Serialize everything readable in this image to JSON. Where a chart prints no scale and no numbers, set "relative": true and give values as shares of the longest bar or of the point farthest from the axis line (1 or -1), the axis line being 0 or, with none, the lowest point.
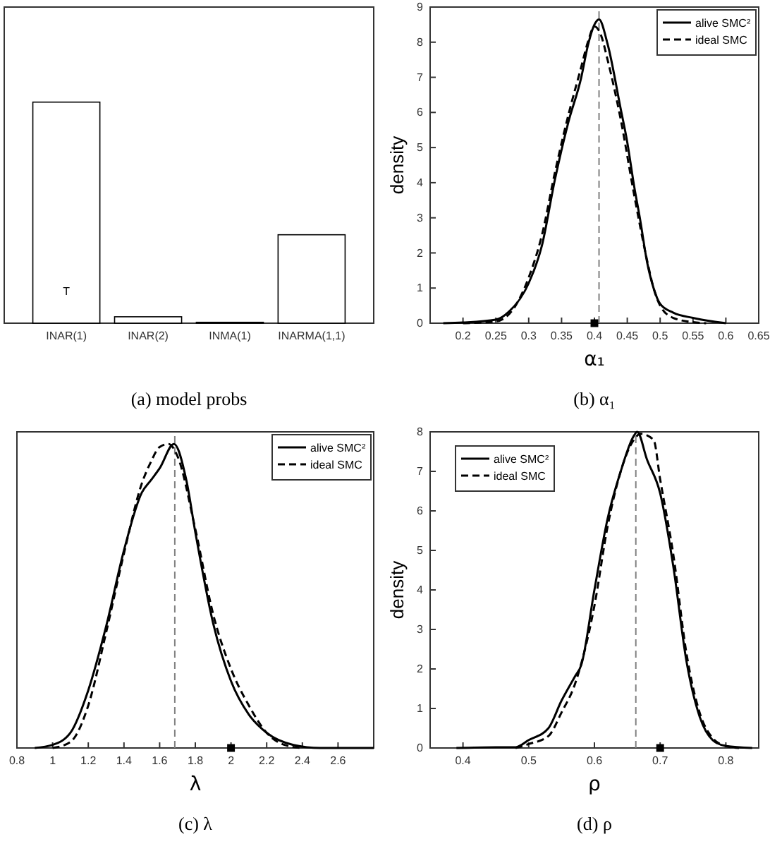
{
  "chart_data": [
    {
      "type": "bar",
      "title": "(a) model probs",
      "relative": true,
      "categories": [
        "INAR(1)",
        "INAR(2)",
        "INMA(1)",
        "INARMA(1,1)"
      ],
      "values": [
        1,
        0.029,
        0.004,
        0.4
      ],
      "color": "#ffffff",
      "annotations": [
        "T"
      ]
    },
    {
      "type": "line",
      "title": "(b) α₁",
      "xlabel": "α₁",
      "ylabel": "density",
      "xlim": [
        0.15,
        0.65
      ],
      "ylim": [
        0,
        9
      ],
      "xticks": [
        0.2,
        0.25,
        0.3,
        0.35,
        0.4,
        0.45,
        0.5,
        0.55,
        0.6,
        0.65
      ],
      "yticks": [
        0,
        1,
        2,
        3,
        4,
        5,
        6,
        7,
        8,
        9
      ],
      "legend": "top right",
      "ref_lines": [
        {
          "axis": "x",
          "value": 0.407,
          "color": "#808080",
          "line_style": "dashed"
        }
      ],
      "series": [
        {
          "name": "alive SMC²",
          "color": "#000000",
          "line_style": "solid",
          "x": [
            0.17,
            0.2,
            0.25,
            0.27,
            0.3,
            0.32,
            0.34,
            0.36,
            0.38,
            0.39,
            0.4,
            0.407,
            0.42,
            0.44,
            0.45,
            0.46,
            0.47,
            0.48,
            0.49,
            0.5,
            0.52,
            0.55,
            0.58,
            0.6
          ],
          "values": [
            0,
            0.02,
            0.1,
            0.33,
            1.14,
            2.2,
            4.1,
            5.7,
            7.0,
            7.9,
            8.5,
            8.65,
            7.95,
            6.1,
            5.15,
            3.95,
            2.9,
            1.75,
            1.0,
            0.55,
            0.3,
            0.15,
            0.05,
            0
          ]
        },
        {
          "name": "ideal SMC",
          "color": "#000000",
          "line_style": "dashed",
          "x": [
            0.2,
            0.25,
            0.28,
            0.3,
            0.32,
            0.34,
            0.36,
            0.38,
            0.39,
            0.4,
            0.41,
            0.42,
            0.44,
            0.46,
            0.48,
            0.49,
            0.5,
            0.52,
            0.55,
            0.57
          ],
          "values": [
            0,
            0.05,
            0.5,
            1.3,
            2.5,
            4.3,
            5.9,
            7.3,
            8.0,
            8.45,
            8.2,
            7.5,
            5.8,
            3.7,
            1.8,
            1.0,
            0.5,
            0.15,
            0.03,
            0
          ]
        },
        {
          "type": "scatter",
          "color": "#000000",
          "marker": "square",
          "x": [
            0.4
          ],
          "values": [
            0
          ]
        }
      ]
    },
    {
      "type": "line",
      "title": "(c) λ",
      "xlabel": "λ",
      "relative": true,
      "xlim": [
        0.8,
        2.8
      ],
      "xticks": [
        0.8,
        1,
        1.2,
        1.4,
        1.6,
        1.8,
        2,
        2.2,
        2.4,
        2.6
      ],
      "legend": "top right",
      "ref_lines": [
        {
          "axis": "x",
          "value": 1.685,
          "color": "#808080",
          "line_style": "dashed"
        }
      ],
      "series": [
        {
          "name": "alive SMC²",
          "color": "#000000",
          "line_style": "solid",
          "x": [
            0.9,
            1.0,
            1.1,
            1.2,
            1.3,
            1.4,
            1.5,
            1.55,
            1.6,
            1.68,
            1.75,
            1.8,
            1.9,
            2.0,
            2.1,
            2.2,
            2.35,
            2.5,
            2.8
          ],
          "values": [
            0,
            0.01,
            0.05,
            0.19,
            0.4,
            0.65,
            0.84,
            0.88,
            0.92,
            1.0,
            0.88,
            0.71,
            0.41,
            0.22,
            0.11,
            0.05,
            0.01,
            0,
            0
          ]
        },
        {
          "name": "ideal SMC",
          "color": "#000000",
          "line_style": "dashed",
          "x": [
            1.0,
            1.1,
            1.2,
            1.3,
            1.4,
            1.5,
            1.55,
            1.6,
            1.65,
            1.7,
            1.8,
            1.9,
            2.0,
            2.1,
            2.2,
            2.3,
            2.4
          ],
          "values": [
            0,
            0.02,
            0.14,
            0.38,
            0.64,
            0.87,
            0.94,
            0.99,
            1.0,
            0.96,
            0.72,
            0.44,
            0.26,
            0.14,
            0.05,
            0.01,
            0
          ]
        },
        {
          "type": "scatter",
          "color": "#000000",
          "marker": "square",
          "x": [
            2
          ],
          "values": [
            0
          ]
        }
      ]
    },
    {
      "type": "line",
      "title": "(d) ρ",
      "xlabel": "ρ",
      "ylabel": "density",
      "xlim": [
        0.35,
        0.85
      ],
      "ylim": [
        0,
        8
      ],
      "xticks": [
        0.4,
        0.5,
        0.6,
        0.7,
        0.8
      ],
      "yticks": [
        0,
        1,
        2,
        3,
        4,
        5,
        6,
        7,
        8
      ],
      "legend": "top left",
      "ref_lines": [
        {
          "axis": "x",
          "value": 0.663,
          "color": "#808080",
          "line_style": "dashed"
        }
      ],
      "series": [
        {
          "name": "alive SMC²",
          "color": "#000000",
          "line_style": "solid",
          "x": [
            0.39,
            0.45,
            0.48,
            0.5,
            0.53,
            0.55,
            0.57,
            0.58,
            0.6,
            0.62,
            0.64,
            0.66,
            0.665,
            0.68,
            0.7,
            0.72,
            0.74,
            0.76,
            0.78,
            0.8,
            0.84
          ],
          "values": [
            0,
            0.02,
            0.02,
            0.2,
            0.5,
            1.2,
            1.8,
            2.1,
            4.0,
            5.8,
            7.0,
            7.9,
            8.0,
            7.3,
            6.45,
            4.6,
            2.2,
            0.8,
            0.2,
            0.05,
            0
          ]
        },
        {
          "name": "ideal SMC",
          "color": "#000000",
          "line_style": "dashed",
          "x": [
            0.48,
            0.5,
            0.53,
            0.55,
            0.57,
            0.6,
            0.62,
            0.64,
            0.66,
            0.67,
            0.69,
            0.7,
            0.72,
            0.74,
            0.76,
            0.78,
            0.8,
            0.82
          ],
          "values": [
            0,
            0.1,
            0.3,
            0.9,
            1.6,
            3.6,
            5.6,
            7.0,
            7.8,
            7.95,
            7.8,
            6.8,
            4.9,
            2.4,
            0.9,
            0.25,
            0.05,
            0
          ]
        },
        {
          "type": "scatter",
          "color": "#000000",
          "marker": "square",
          "x": [
            0.7
          ],
          "values": [
            0
          ]
        }
      ]
    }
  ]
}
